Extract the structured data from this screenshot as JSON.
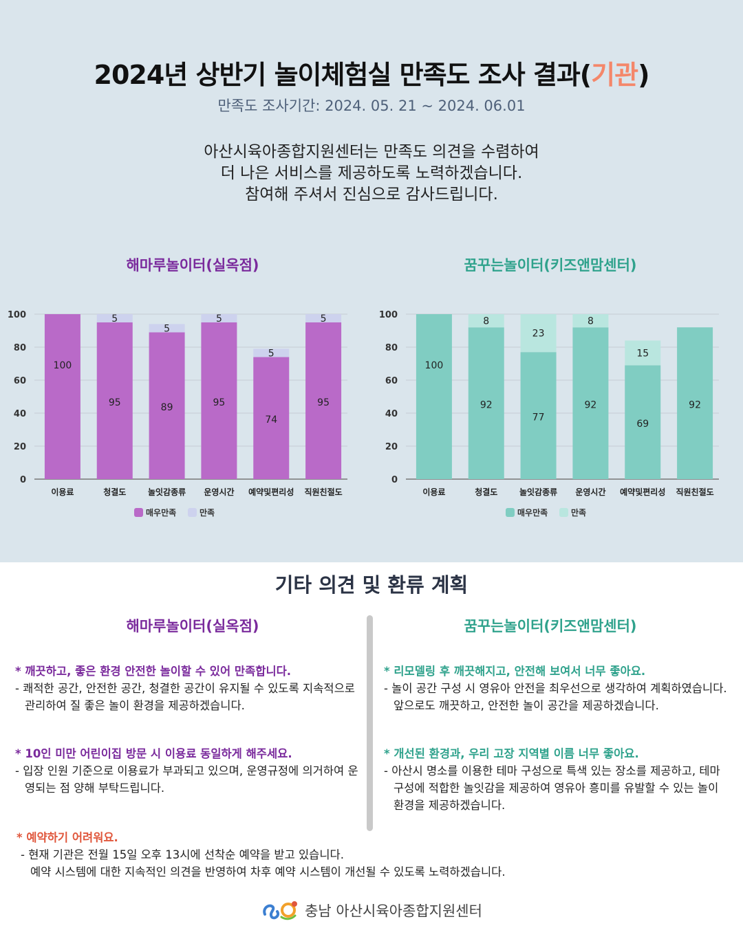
{
  "header": {
    "title_prefix": "2024년 상반기 놀이체험실 만족도 조사 결과(",
    "title_highlight": "기관",
    "title_suffix": ")",
    "period": "만족도 조사기간: 2024. 05. 21 ~ 2024. 06.01",
    "intro": [
      "아산시육아종합지원센터는 만족도 의견을 수렴하여",
      "더 나은 서비스를 제공하도록 노력하겠습니다.",
      "참여해 주셔서 진심으로 감사드립니다."
    ]
  },
  "colors": {
    "purple_dark": "#b96ac8",
    "purple_light": "#cdd2ee",
    "teal_dark": "#80cdc2",
    "teal_light": "#b9e6df",
    "bg": "#dae5ec"
  },
  "chart_data": [
    {
      "type": "bar",
      "stacked": true,
      "title": "해마루놀이터(실옥점)",
      "categories": [
        "이용료",
        "청결도",
        "놀잇감종류",
        "운영시간",
        "예약및편리성",
        "직원친절도"
      ],
      "ylim": [
        0,
        100
      ],
      "yticks": [
        "0",
        "20",
        "40",
        "60",
        "80",
        "100"
      ],
      "grid": true,
      "legend_position": "bottom",
      "series": [
        {
          "name": "매우만족",
          "values": [
            100,
            95,
            89,
            95,
            74,
            95
          ],
          "labels": [
            "100",
            "95",
            "89",
            "95",
            "74",
            "95"
          ]
        },
        {
          "name": "만족",
          "values": [
            0,
            5,
            5,
            5,
            5,
            5
          ],
          "labels": [
            "",
            "5",
            "5",
            "5",
            "5",
            "5"
          ]
        }
      ]
    },
    {
      "type": "bar",
      "stacked": true,
      "title": "꿈꾸는놀이터(키즈앤맘센터)",
      "categories": [
        "이용료",
        "청결도",
        "놀잇감종류",
        "운영시간",
        "예약및편리성",
        "직원친절도"
      ],
      "ylim": [
        0,
        100
      ],
      "yticks": [
        "0",
        "20",
        "40",
        "60",
        "80",
        "100"
      ],
      "grid": true,
      "legend_position": "bottom",
      "series": [
        {
          "name": "매우만족",
          "values": [
            100,
            92,
            77,
            92,
            69,
            92
          ],
          "labels": [
            "100",
            "92",
            "77",
            "92",
            "69",
            "92"
          ]
        },
        {
          "name": "만족",
          "values": [
            0,
            8,
            23,
            8,
            15,
            0
          ],
          "labels": [
            "",
            "8",
            "23",
            "8",
            "15",
            ""
          ]
        }
      ]
    }
  ],
  "opinions": {
    "title": "기타 의견 및 환류 계획",
    "left_title": "해마루놀이터(실옥점)",
    "right_title": "꿈꾸는놀이터(키즈앤맘센터)",
    "left": [
      {
        "q": "* 깨끗하고, 좋은 환경 안전한 놀이할 수 있어 만족합니다.",
        "a": "- 쾌적한 공간, 안전한 공간, 청결한 공간이 유지될 수 있도록 지속적으로 관리하여 질 좋은 놀이 환경을 제공하겠습니다."
      },
      {
        "q": "* 10인 미만 어린이집 방문 시 이용료 동일하게 해주세요.",
        "a": "- 입장 인원 기준으로 이용료가 부과되고 있으며, 운영규정에 의거하여 운영되는 점 양해 부탁드립니다."
      }
    ],
    "right": [
      {
        "q": "* 리모델링 후 깨끗해지고, 안전해 보여서 너무 좋아요.",
        "a": "- 놀이 공간 구성 시 영유아 안전을 최우선으로 생각하여 계획하였습니다. 앞으로도 깨끗하고, 안전한 놀이 공간을 제공하겠습니다."
      },
      {
        "q": "* 개선된 환경과, 우리 고장 지역별 이름 너무 좋아요.",
        "a": "- 아산시 명소를 이용한 테마 구성으로 특색 있는 장소를 제공하고, 테마 구성에 적합한 놀잇감을 제공하여 영유아 흥미를 유발할 수 있는 놀이 환경을 제공하겠습니다."
      }
    ],
    "bottom": {
      "q": "* 예약하기 어려워요.",
      "a1": "- 현재 기관은 전월 15일 오후 13시에 선착순 예약을 받고 있습니다.",
      "a2": "예약 시스템에 대한 지속적인 의견을 반영하여 차후 예약 시스템이 개선될 수 있도록 노력하겠습니다."
    }
  },
  "footer": {
    "org": "충남 아산시육아종합지원센터"
  }
}
